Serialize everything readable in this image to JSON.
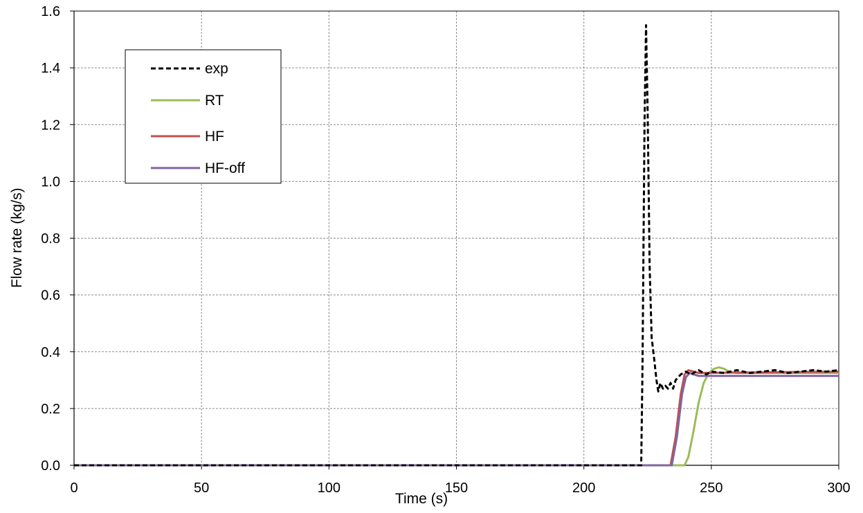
{
  "chart_data": {
    "type": "line",
    "title": "",
    "xlabel": "Time (s)",
    "ylabel": "Flow rate (kg/s)",
    "xlim": [
      0,
      300
    ],
    "ylim": [
      0,
      1.6
    ],
    "x_ticks": [
      "0",
      "50",
      "100",
      "150",
      "200",
      "250",
      "300"
    ],
    "y_ticks": [
      "0.0",
      "0.2",
      "0.4",
      "0.6",
      "0.8",
      "1.0",
      "1.2",
      "1.4",
      "1.6"
    ],
    "grid": true,
    "legend_position": "top-left",
    "series": [
      {
        "name": "exp",
        "color": "#000000",
        "style": "dashed",
        "points": [
          [
            0,
            0
          ],
          [
            222.5,
            0
          ],
          [
            223,
            0.35
          ],
          [
            223.8,
            1.2
          ],
          [
            224.4,
            1.55
          ],
          [
            225,
            1.25
          ],
          [
            225.8,
            0.7
          ],
          [
            226.6,
            0.45
          ],
          [
            227.5,
            0.38
          ],
          [
            228.5,
            0.3
          ],
          [
            229.2,
            0.26
          ],
          [
            230,
            0.29
          ],
          [
            231,
            0.27
          ],
          [
            232,
            0.28
          ],
          [
            233,
            0.27
          ],
          [
            234,
            0.29
          ],
          [
            235,
            0.27
          ],
          [
            236,
            0.3
          ],
          [
            237,
            0.31
          ],
          [
            238,
            0.32
          ],
          [
            240,
            0.33
          ],
          [
            242,
            0.32
          ],
          [
            245,
            0.335
          ],
          [
            248,
            0.32
          ],
          [
            250,
            0.33
          ],
          [
            255,
            0.325
          ],
          [
            260,
            0.335
          ],
          [
            265,
            0.325
          ],
          [
            270,
            0.33
          ],
          [
            275,
            0.335
          ],
          [
            280,
            0.325
          ],
          [
            285,
            0.33
          ],
          [
            290,
            0.335
          ],
          [
            295,
            0.33
          ],
          [
            300,
            0.335
          ]
        ]
      },
      {
        "name": "RT",
        "color": "#9bbb59",
        "style": "solid",
        "points": [
          [
            0,
            0
          ],
          [
            239.5,
            0
          ],
          [
            241,
            0.03
          ],
          [
            243,
            0.12
          ],
          [
            245,
            0.22
          ],
          [
            247,
            0.29
          ],
          [
            249,
            0.325
          ],
          [
            251,
            0.34
          ],
          [
            253,
            0.345
          ],
          [
            255,
            0.34
          ],
          [
            257,
            0.33
          ],
          [
            260,
            0.325
          ],
          [
            300,
            0.325
          ]
        ]
      },
      {
        "name": "HF",
        "color": "#c0504d",
        "style": "solid",
        "points": [
          [
            0,
            0
          ],
          [
            234,
            0
          ],
          [
            236,
            0.1
          ],
          [
            238,
            0.25
          ],
          [
            239.5,
            0.32
          ],
          [
            241,
            0.335
          ],
          [
            243,
            0.33
          ],
          [
            245,
            0.325
          ],
          [
            300,
            0.33
          ]
        ]
      },
      {
        "name": "HF-off",
        "color": "#8064a2",
        "style": "solid",
        "points": [
          [
            0,
            0
          ],
          [
            234.5,
            0
          ],
          [
            236.5,
            0.1
          ],
          [
            238.5,
            0.25
          ],
          [
            240,
            0.31
          ],
          [
            241.5,
            0.325
          ],
          [
            243,
            0.32
          ],
          [
            245,
            0.315
          ],
          [
            300,
            0.315
          ]
        ]
      }
    ]
  }
}
